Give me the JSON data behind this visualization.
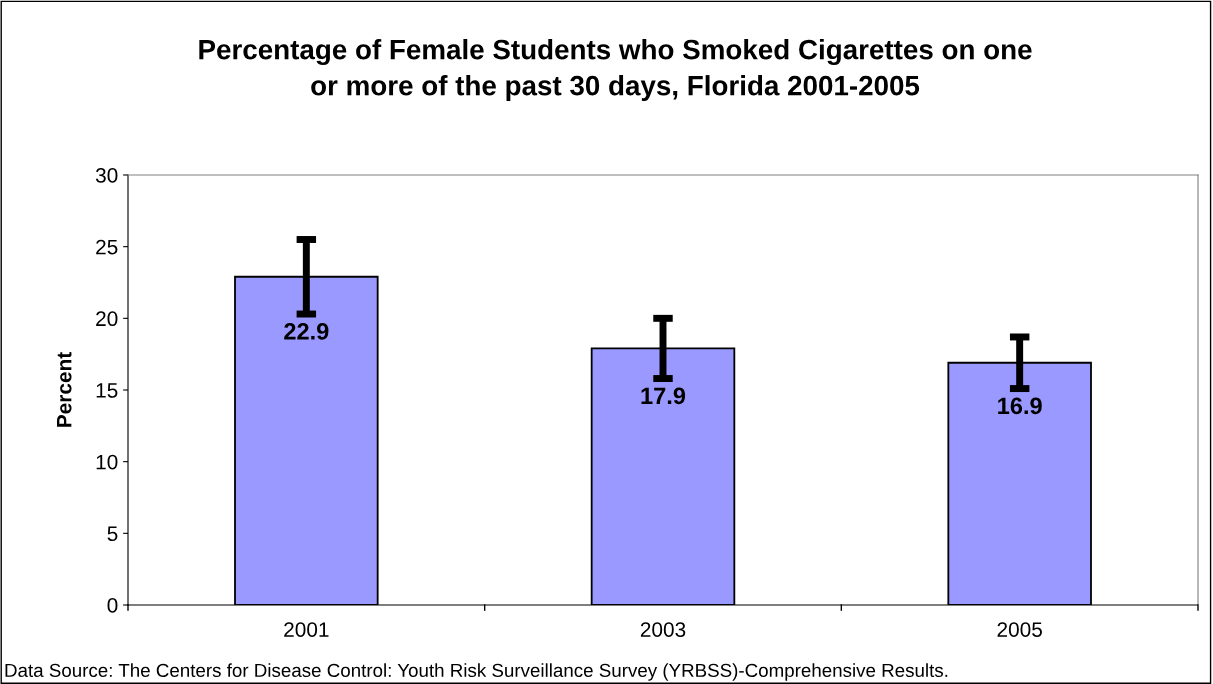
{
  "chart_data": {
    "type": "bar",
    "title": "Percentage of Female Students who Smoked Cigarettes on one\nor more of the past 30 days, Florida 2001-2005",
    "ylabel": "Percent",
    "categories": [
      "2001",
      "2003",
      "2005"
    ],
    "values": [
      22.9,
      17.9,
      16.9
    ],
    "color": "#9999ff",
    "errors": [
      2.6,
      2.1,
      1.8
    ],
    "data_labels": true,
    "ylim": [
      0,
      30
    ],
    "yticks": [
      0,
      5,
      10,
      15,
      20,
      25,
      30
    ],
    "grid": false,
    "annotations": [
      "Data Source: The Centers for Disease Control: Youth Risk Surveillance Survey (YRBSS)-Comprehensive Results."
    ]
  }
}
